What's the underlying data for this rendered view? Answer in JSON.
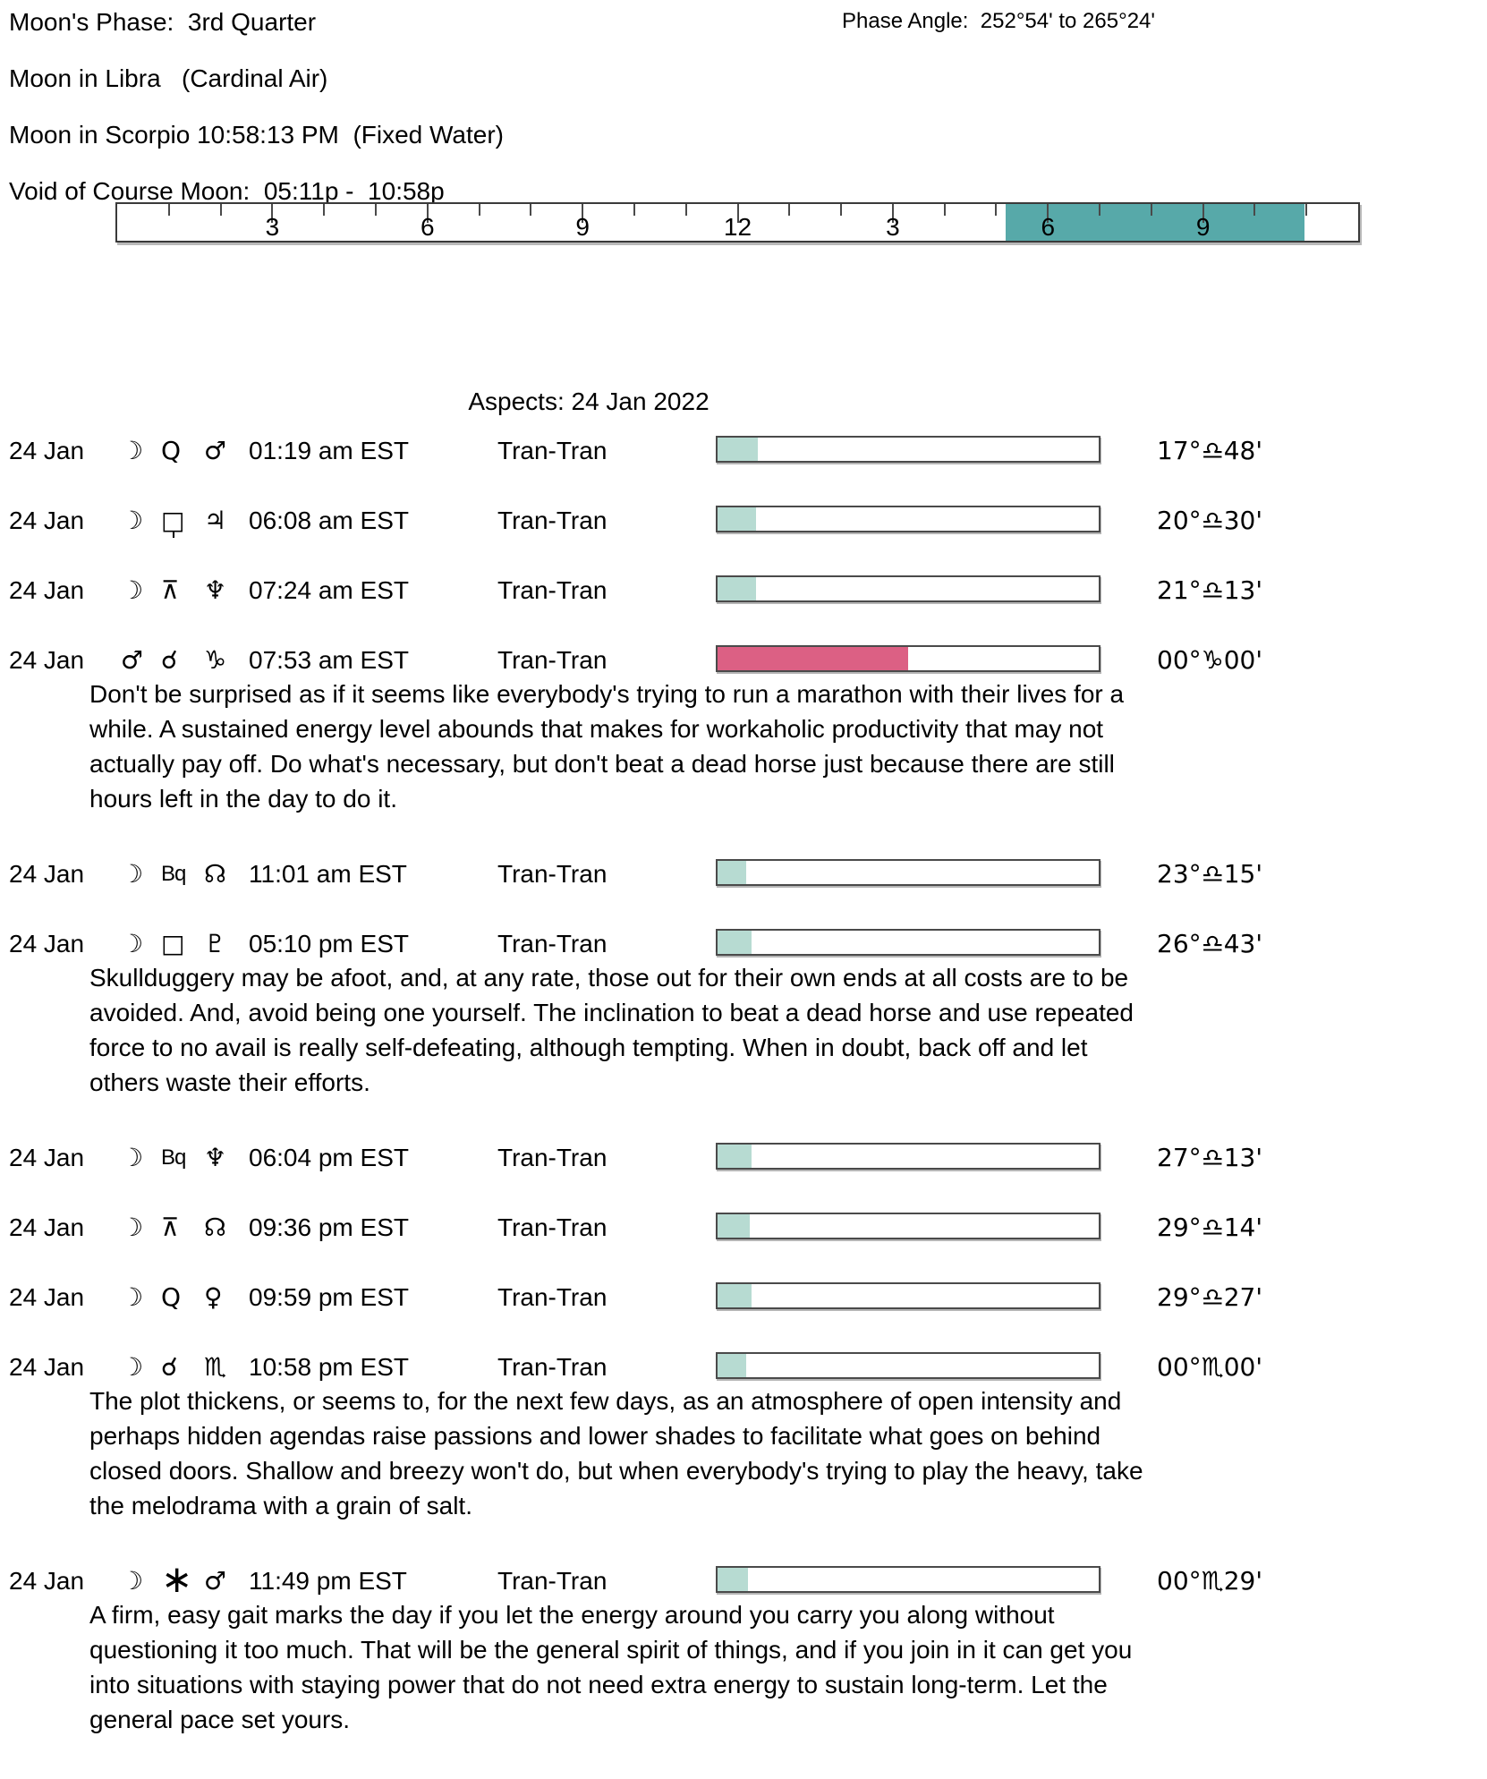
{
  "header": {
    "moon_phase_line": "Moon's Phase:  3rd Quarter",
    "phase_angle_line": "Phase Angle:  252°54' to 265°24'",
    "moon_sign_line1": "Moon in Libra   (Cardinal Air)",
    "moon_sign_line2": "Moon in Scorpio 10:58:13 PM  (Fixed Water)",
    "voc_line": "Void of Course Moon:  05:11p -  10:58p"
  },
  "ruler": {
    "hours_start": 0,
    "hours_end": 24,
    "tick_labels": [
      {
        "hour": 3,
        "label": "3"
      },
      {
        "hour": 6,
        "label": "6"
      },
      {
        "hour": 9,
        "label": "9"
      },
      {
        "hour": 12,
        "label": "12"
      },
      {
        "hour": 15,
        "label": "3"
      },
      {
        "hour": 18,
        "label": "6"
      },
      {
        "hour": 21,
        "label": "9"
      }
    ],
    "voc_start_hour": 17.1833,
    "voc_end_hour": 22.9667,
    "voc_color": "#57a9a9"
  },
  "aspects": {
    "title": "Aspects: 24 Jan 2022",
    "teal_fill_color": "#b7dbd2",
    "pink_fill_color": "#dc6084",
    "rows": [
      {
        "date": "24 Jan",
        "body1_glyph": "☽",
        "body1_name": "moon",
        "aspect_glyph": "Q",
        "aspect_name": "quintile",
        "body2_glyph": "♂",
        "body2_name": "mars",
        "time": "01:19 am EST",
        "type": "Tran-Tran",
        "fill_pct": 10.5,
        "fill_color": "#b7dbd2",
        "degree": "17°♎48'",
        "interpretation": ""
      },
      {
        "date": "24 Jan",
        "body1_glyph": "☽",
        "body1_name": "moon",
        "aspect_glyph": "□",
        "aspect_name": "sesquiquadrate",
        "body2_glyph": "♃",
        "body2_name": "jupiter",
        "time": "06:08 am EST",
        "type": "Tran-Tran",
        "fill_pct": 10,
        "fill_color": "#b7dbd2",
        "degree": "20°♎30'",
        "interpretation": ""
      },
      {
        "date": "24 Jan",
        "body1_glyph": "☽",
        "body1_name": "moon",
        "aspect_glyph": "⊼",
        "aspect_name": "quincunx",
        "body2_glyph": "♆",
        "body2_name": "neptune",
        "time": "07:24 am EST",
        "type": "Tran-Tran",
        "fill_pct": 10,
        "fill_color": "#b7dbd2",
        "degree": "21°♎13'",
        "interpretation": ""
      },
      {
        "date": "24 Jan",
        "body1_glyph": "♂",
        "body1_name": "mars",
        "aspect_glyph": "☌",
        "aspect_name": "conjunction",
        "body2_glyph": "♑",
        "body2_name": "capricorn",
        "time": "07:53 am EST",
        "type": "Tran-Tran",
        "fill_pct": 50,
        "fill_color": "#dc6084",
        "degree": "00°♑00'",
        "interpretation": "Don't be surprised as if it seems like everybody's trying to run a marathon with their lives for a while. A sustained energy level abounds that makes for workaholic productivity that may not actually pay off. Do what's necessary, but don't beat a dead horse just because there are still hours left in the day to do it."
      },
      {
        "date": "24 Jan",
        "body1_glyph": "☽",
        "body1_name": "moon",
        "aspect_glyph": "Bq",
        "aspect_name": "biquintile",
        "body2_glyph": "☊",
        "body2_name": "north-node",
        "time": "11:01 am EST",
        "type": "Tran-Tran",
        "fill_pct": 7.5,
        "fill_color": "#b7dbd2",
        "degree": "23°♎15'",
        "interpretation": ""
      },
      {
        "date": "24 Jan",
        "body1_glyph": "☽",
        "body1_name": "moon",
        "aspect_glyph": "□",
        "aspect_name": "square",
        "body2_glyph": "♇",
        "body2_name": "pluto",
        "time": "05:10 pm EST",
        "type": "Tran-Tran",
        "fill_pct": 9,
        "fill_color": "#b7dbd2",
        "degree": "26°♎43'",
        "interpretation": "Skullduggery may be afoot, and, at any rate, those out for their own ends at all costs are to be avoided. And, avoid being one yourself. The inclination to beat a dead horse and use repeated force to no avail is really self-defeating, although tempting. When in doubt, back off and let others waste their efforts."
      },
      {
        "date": "24 Jan",
        "body1_glyph": "☽",
        "body1_name": "moon",
        "aspect_glyph": "Bq",
        "aspect_name": "biquintile",
        "body2_glyph": "♆",
        "body2_name": "neptune",
        "time": "06:04 pm EST",
        "type": "Tran-Tran",
        "fill_pct": 9,
        "fill_color": "#b7dbd2",
        "degree": "27°♎13'",
        "interpretation": ""
      },
      {
        "date": "24 Jan",
        "body1_glyph": "☽",
        "body1_name": "moon",
        "aspect_glyph": "⊼",
        "aspect_name": "quincunx",
        "body2_glyph": "☊",
        "body2_name": "north-node",
        "time": "09:36 pm EST",
        "type": "Tran-Tran",
        "fill_pct": 8.5,
        "fill_color": "#b7dbd2",
        "degree": "29°♎14'",
        "interpretation": ""
      },
      {
        "date": "24 Jan",
        "body1_glyph": "☽",
        "body1_name": "moon",
        "aspect_glyph": "Q",
        "aspect_name": "quintile",
        "body2_glyph": "♀",
        "body2_name": "venus",
        "time": "09:59 pm EST",
        "type": "Tran-Tran",
        "fill_pct": 9,
        "fill_color": "#b7dbd2",
        "degree": "29°♎27'",
        "interpretation": ""
      },
      {
        "date": "24 Jan",
        "body1_glyph": "☽",
        "body1_name": "moon",
        "aspect_glyph": "☌",
        "aspect_name": "conjunction",
        "body2_glyph": "♏",
        "body2_name": "scorpio",
        "time": "10:58 pm EST",
        "type": "Tran-Tran",
        "fill_pct": 7.5,
        "fill_color": "#b7dbd2",
        "degree": "00°♏00'",
        "interpretation": "The plot thickens, or seems to, for the next few days, as an atmosphere of open intensity and perhaps hidden agendas raise passions and lower shades to facilitate what goes on behind closed doors. Shallow and breezy won't do, but when everybody's trying to play the heavy, take the melodrama with a grain of salt."
      },
      {
        "date": "24 Jan",
        "body1_glyph": "☽",
        "body1_name": "moon",
        "aspect_glyph": "∗",
        "aspect_name": "sextile",
        "body2_glyph": "♂",
        "body2_name": "mars",
        "time": "11:49 pm EST",
        "type": "Tran-Tran",
        "fill_pct": 8,
        "fill_color": "#b7dbd2",
        "degree": "00°♏29'",
        "interpretation": "A firm, easy gait marks the day if you let the energy around you carry you along without questioning it too much. That will be the general spirit of things, and if you join in it can get you into situations with staying power that do not need extra energy to sustain long-term. Let the general pace set yours."
      }
    ]
  }
}
